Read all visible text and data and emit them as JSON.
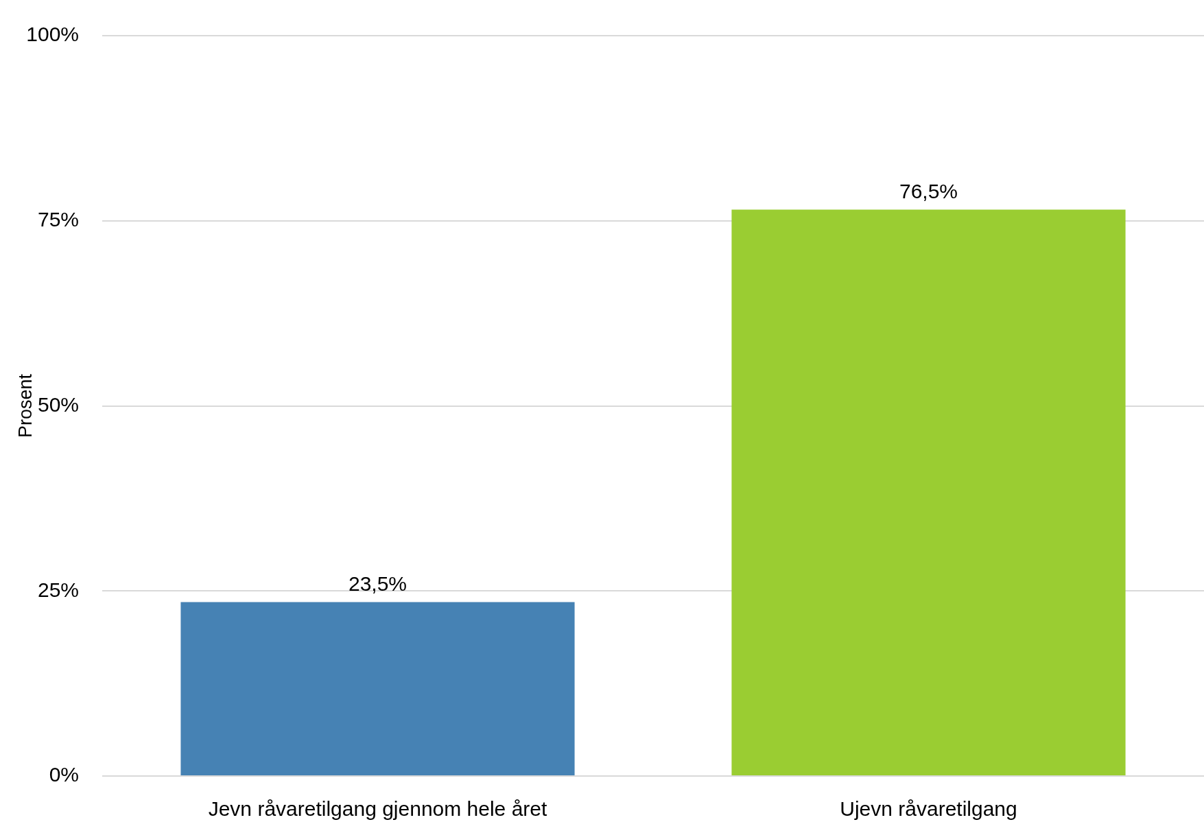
{
  "chart_data": {
    "type": "bar",
    "ylabel": "Prosent",
    "categories": [
      "Jevn råvaretilgang gjennom hele året",
      "Ujevn råvaretilgang"
    ],
    "values": [
      23.5,
      76.5
    ],
    "colors": [
      "#4682b4",
      "#9acd32"
    ],
    "value_labels": [
      "23,5%",
      "76,5%"
    ],
    "ylim": [
      0,
      100
    ],
    "yticks": [
      {
        "value": 0,
        "label": "0%"
      },
      {
        "value": 25,
        "label": "25%"
      },
      {
        "value": 50,
        "label": "50%"
      },
      {
        "value": 75,
        "label": "75%"
      },
      {
        "value": 100,
        "label": "100%"
      }
    ],
    "grid": "y"
  }
}
